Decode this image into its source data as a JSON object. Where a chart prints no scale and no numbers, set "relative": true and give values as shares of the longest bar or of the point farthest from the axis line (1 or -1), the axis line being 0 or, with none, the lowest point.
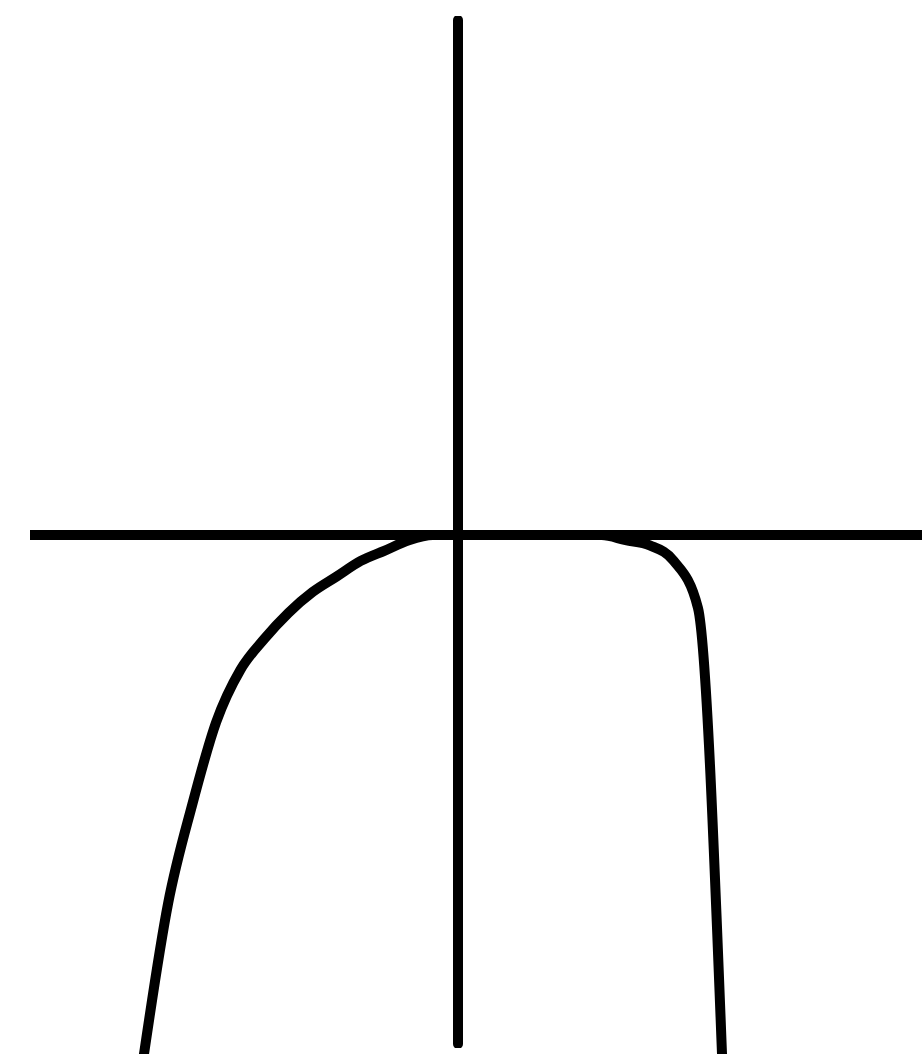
{
  "chart_data": {
    "type": "line",
    "relative": true,
    "categories": [
      null,
      null,
      null,
      null,
      null,
      null,
      null,
      null,
      null,
      null,
      null,
      null,
      null,
      null,
      null,
      null,
      null,
      null,
      null,
      null,
      null,
      null,
      null,
      null,
      null
    ],
    "series": [
      {
        "color": "#000000",
        "values": [
          -1,
          -0.71,
          -0.52,
          -0.36,
          -0.26,
          -0.2,
          -0.15,
          -0.11,
          -0.08,
          -0.05,
          -0.03,
          -0.01,
          0,
          0,
          0,
          0,
          0,
          0,
          0,
          0,
          -0.01,
          -0.02,
          -0.05,
          -0.14,
          -1
        ]
      }
    ],
    "marker": "none",
    "line_style": "solid",
    "grid": false
  }
}
